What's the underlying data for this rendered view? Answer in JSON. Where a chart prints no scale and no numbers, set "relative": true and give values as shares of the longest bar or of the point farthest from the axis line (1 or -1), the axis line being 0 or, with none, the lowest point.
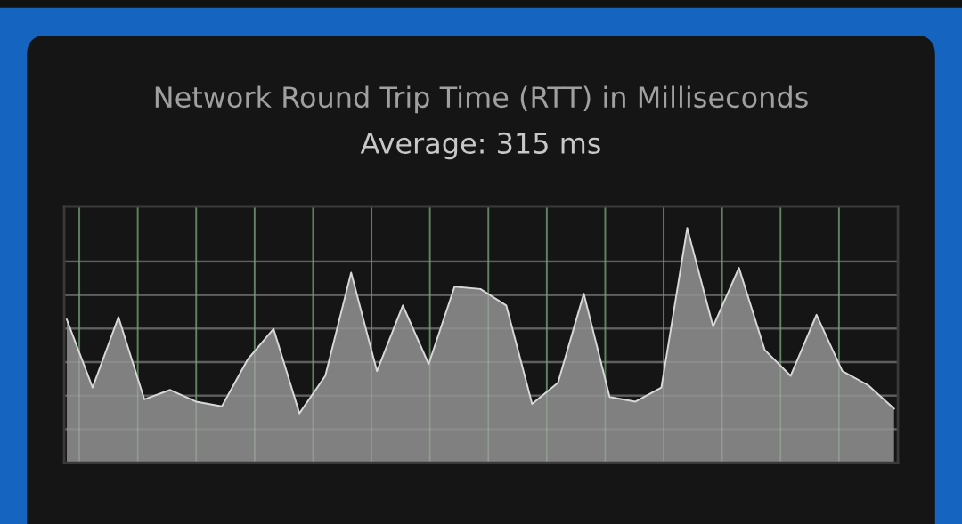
{
  "chart_data": {
    "type": "area",
    "title": "Network Round Trip Time (RTT) in Milliseconds",
    "subtitle": "Average: 315 ms",
    "relative": true,
    "grid": true,
    "categories": [
      null,
      null,
      null,
      null,
      null,
      null,
      null,
      null,
      null,
      null,
      null,
      null,
      null,
      null,
      null,
      null,
      null,
      null,
      null,
      null,
      null,
      null,
      null,
      null,
      null,
      null,
      null,
      null,
      null,
      null,
      null,
      null,
      null
    ],
    "series": [
      {
        "color": "#808080",
        "values": [
          0.61,
          0.32,
          0.62,
          0.27,
          0.31,
          0.26,
          0.24,
          0.44,
          0.57,
          0.21,
          0.37,
          0.81,
          0.39,
          0.67,
          0.42,
          0.75,
          0.74,
          0.67,
          0.25,
          0.34,
          0.72,
          0.28,
          0.26,
          0.32,
          1,
          0.58,
          0.83,
          0.48,
          0.37,
          0.63,
          0.39,
          0.33,
          0.23
        ]
      }
    ]
  }
}
